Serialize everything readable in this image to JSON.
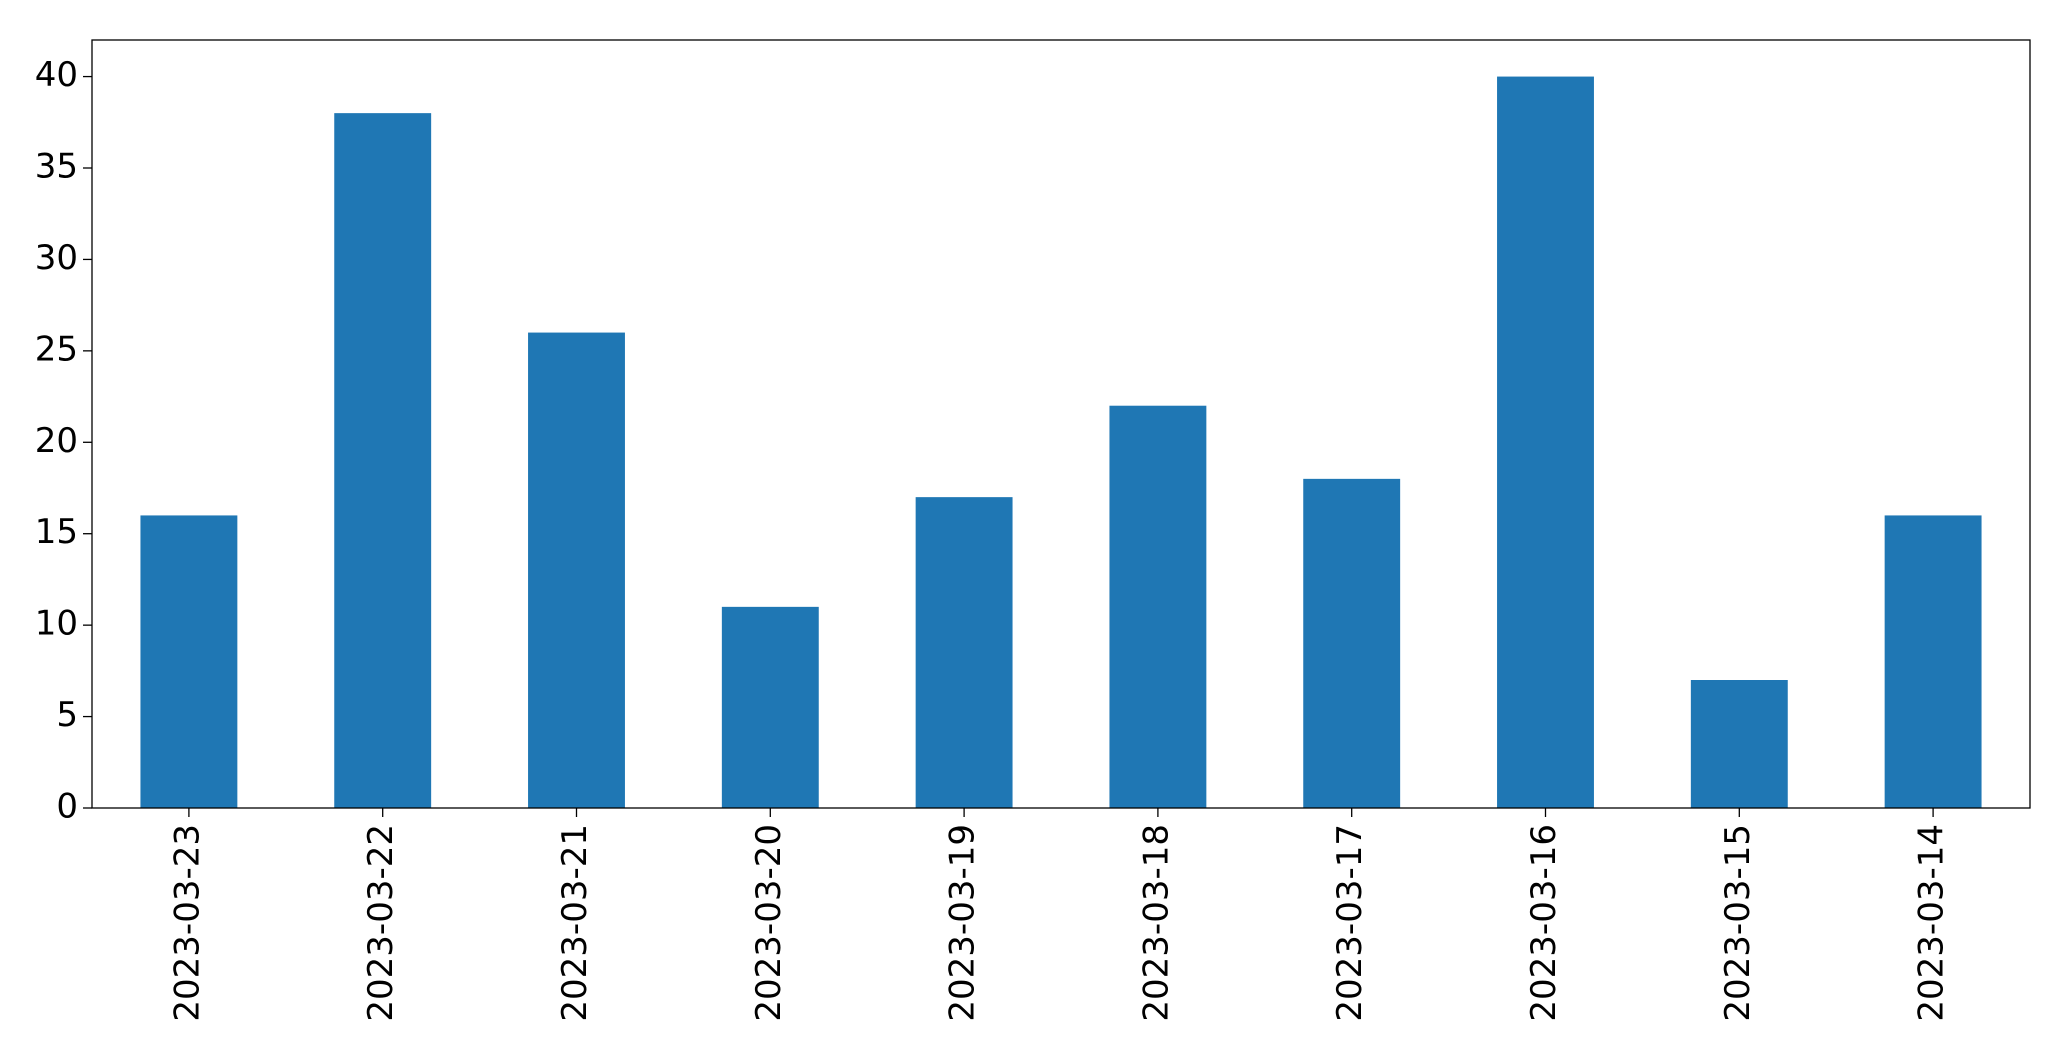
{
  "chart_data": {
    "type": "bar",
    "categories": [
      "2023-03-23",
      "2023-03-22",
      "2023-03-21",
      "2023-03-20",
      "2023-03-19",
      "2023-03-18",
      "2023-03-17",
      "2023-03-16",
      "2023-03-15",
      "2023-03-14"
    ],
    "values": [
      16,
      38,
      26,
      11,
      17,
      22,
      18,
      40,
      7,
      16
    ],
    "color": "#1f77b4",
    "ylim": [
      0,
      42.0
    ],
    "yticks": [
      0,
      5,
      10,
      15,
      20,
      25,
      30,
      35,
      40
    ],
    "grid": false
  }
}
